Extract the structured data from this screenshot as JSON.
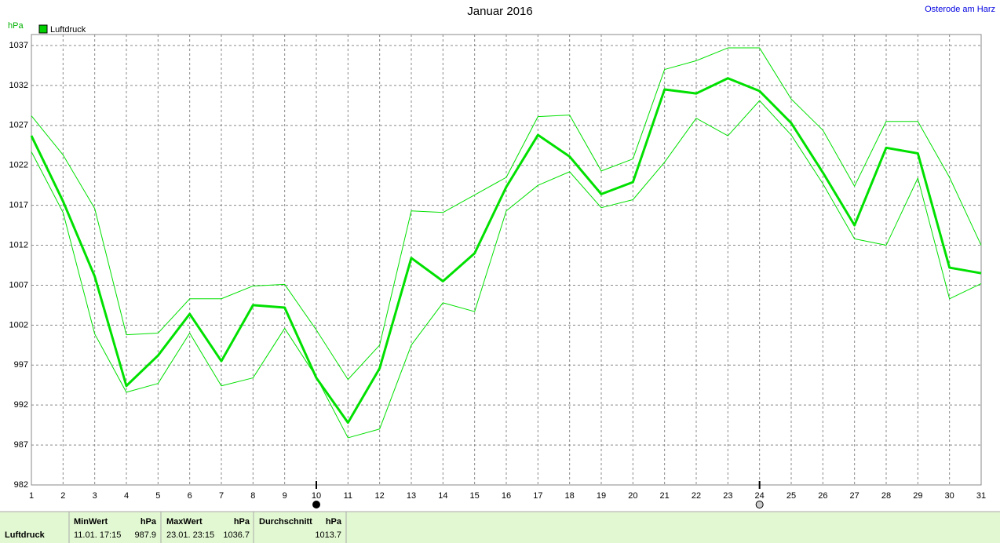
{
  "chart_data": {
    "type": "line",
    "title": "Januar 2016",
    "location": "Osterode am Harz",
    "y_unit": "hPa",
    "x": [
      1,
      2,
      3,
      4,
      5,
      6,
      7,
      8,
      9,
      10,
      11,
      12,
      13,
      14,
      15,
      16,
      17,
      18,
      19,
      20,
      21,
      22,
      23,
      24,
      25,
      26,
      27,
      28,
      29,
      30,
      31
    ],
    "xlim": [
      1,
      31
    ],
    "xticks": [
      1,
      2,
      3,
      4,
      5,
      6,
      7,
      8,
      9,
      10,
      11,
      12,
      13,
      14,
      15,
      16,
      17,
      18,
      19,
      20,
      21,
      22,
      23,
      24,
      25,
      26,
      27,
      28,
      29,
      30,
      31
    ],
    "ylim": [
      982,
      1037
    ],
    "yticks": [
      982,
      987,
      992,
      997,
      1002,
      1007,
      1012,
      1017,
      1022,
      1027,
      1032,
      1037
    ],
    "grid": true,
    "event_days": [
      10,
      24
    ],
    "series": [
      {
        "name": "Luftdruck",
        "color": "#00e000",
        "width": 3,
        "values": [
          1025.7,
          1017.5,
          1008.1,
          994.4,
          998.2,
          1003.4,
          997.5,
          1004.5,
          1004.2,
          995.4,
          989.8,
          996.6,
          1010.4,
          1007.5,
          1011.0,
          1019.3,
          1025.8,
          1023.1,
          1018.4,
          1019.9,
          1031.5,
          1031.0,
          1032.9,
          1031.3,
          1027.3,
          1021.1,
          1014.5,
          1024.2,
          1023.5,
          1009.2,
          1008.5
        ]
      },
      {
        "color": "#00e000",
        "width": 1,
        "values": [
          1028.2,
          1023.3,
          1016.6,
          1000.8,
          1001.0,
          1005.3,
          1005.3,
          1006.9,
          1007.1,
          1001.4,
          995.2,
          999.5,
          1016.3,
          1016.1,
          1018.3,
          1020.5,
          1028.1,
          1028.3,
          1021.3,
          1022.8,
          1034.0,
          1035.1,
          1036.7,
          1036.7,
          1030.3,
          1026.4,
          1019.4,
          1027.5,
          1027.5,
          1020.5,
          1012.0
        ]
      },
      {
        "color": "#00e000",
        "width": 1,
        "values": [
          1023.7,
          1016.1,
          1000.9,
          993.6,
          994.7,
          1001.0,
          994.4,
          995.4,
          1001.6,
          995.5,
          987.9,
          989.0,
          999.5,
          1004.8,
          1003.7,
          1016.3,
          1019.5,
          1021.2,
          1016.7,
          1017.7,
          1022.4,
          1027.9,
          1025.7,
          1030.1,
          1025.8,
          1019.7,
          1012.8,
          1012.0,
          1020.4,
          1005.3,
          1007.2
        ]
      }
    ]
  },
  "stats": {
    "label": "Luftdruck",
    "min": {
      "header": "MinWert",
      "unit": "hPa",
      "time": "11.01.  17:15",
      "value": "987.9"
    },
    "max": {
      "header": "MaxWert",
      "unit": "hPa",
      "time": "23.01.  23:15",
      "value": "1036.7"
    },
    "avg": {
      "header": "Durchschnitt",
      "unit": "hPa",
      "value": "1013.7"
    }
  }
}
